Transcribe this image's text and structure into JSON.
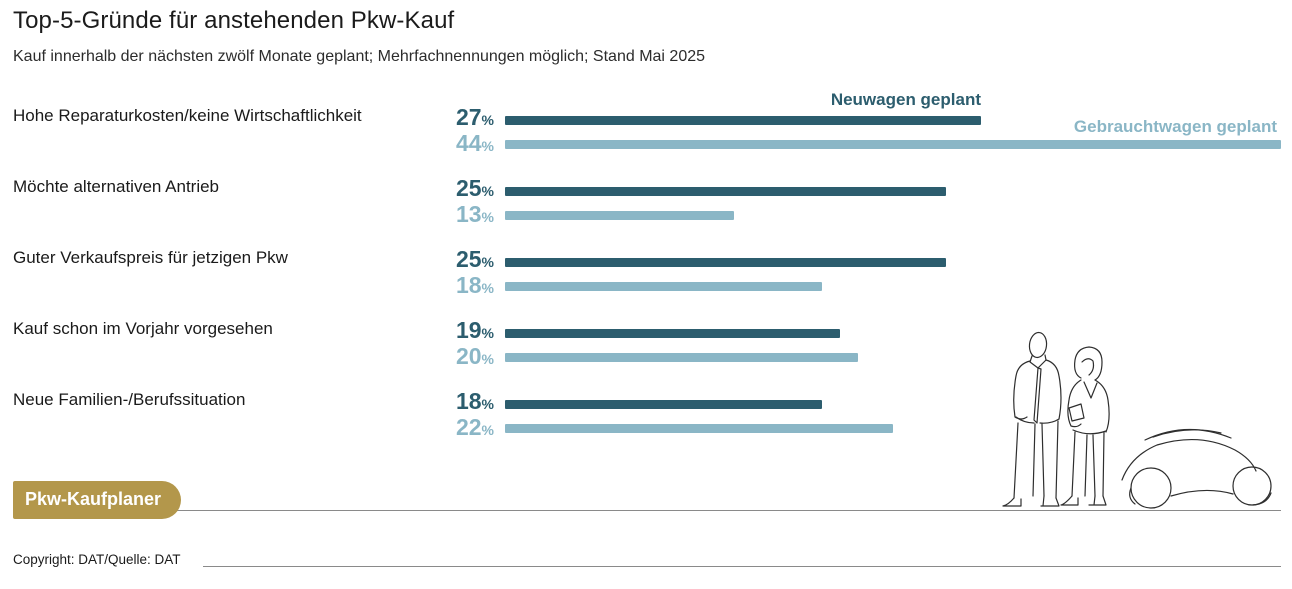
{
  "header": {
    "title": "Top-5-Gründe für anstehenden Pkw-Kauf",
    "subtitle": "Kauf innerhalb der nächsten zwölf Monate geplant; Mehrfachnennungen möglich; Stand Mai 2025"
  },
  "chart_data": {
    "type": "bar",
    "orientation": "horizontal",
    "title": "Top-5-Gründe für anstehenden Pkw-Kauf",
    "subtitle": "Kauf innerhalb der nächsten zwölf Monate geplant; Mehrfachnennungen möglich; Stand Mai 2025",
    "categories": [
      "Hohe Reparaturkosten/keine Wirtschaftlichkeit",
      "Möchte alternativen Antrieb",
      "Guter Verkaufspreis für jetzigen Pkw",
      "Kauf schon im Vorjahr vorgesehen",
      "Neue Familien-/Berufssituation"
    ],
    "series": [
      {
        "name": "Neuwagen geplant",
        "color": "#2c5d6e",
        "values": [
          27,
          25,
          25,
          19,
          18
        ]
      },
      {
        "name": "Gebrauchtwagen geplant",
        "color": "#8ab6c6",
        "values": [
          44,
          13,
          18,
          20,
          22
        ]
      }
    ],
    "value_suffix": "%",
    "xlim": [
      0,
      44
    ],
    "grid": false,
    "legend_position": "top-right above first bars"
  },
  "footer": {
    "badge_label": "Pkw-Kaufplaner",
    "badge_color": "#b3974b",
    "copyright": "Copyright: DAT/Quelle: DAT"
  },
  "illustration": "couple-and-car-sketch"
}
